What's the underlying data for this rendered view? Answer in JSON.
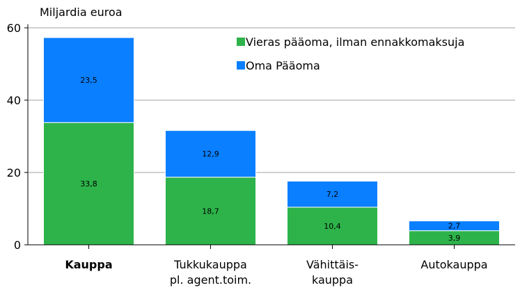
{
  "chart_data": {
    "type": "bar",
    "stacked": true,
    "y_axis_label": "Miljardia euroa",
    "categories": [
      "Kauppa",
      "Tukkukauppa\npl. agent.toim.",
      "Vähittäis-\nkauppa",
      "Autokauppa"
    ],
    "series": [
      {
        "name": "Vieras pääoma, ilman ennakkomaksuja",
        "color": "#2db34a",
        "values": [
          33.8,
          18.7,
          10.4,
          3.9
        ],
        "value_labels": [
          "33,8",
          "18,7",
          "10,4",
          "3,9"
        ]
      },
      {
        "name": "Oma Pääoma",
        "color": "#0a7fff",
        "values": [
          23.5,
          12.9,
          7.2,
          2.7
        ],
        "value_labels": [
          "23,5",
          "12,9",
          "7,2",
          "2,7"
        ]
      }
    ],
    "ylim": [
      0,
      60
    ],
    "yticks": [
      0,
      20,
      40,
      60
    ],
    "grid": true,
    "legend": "top-right"
  }
}
